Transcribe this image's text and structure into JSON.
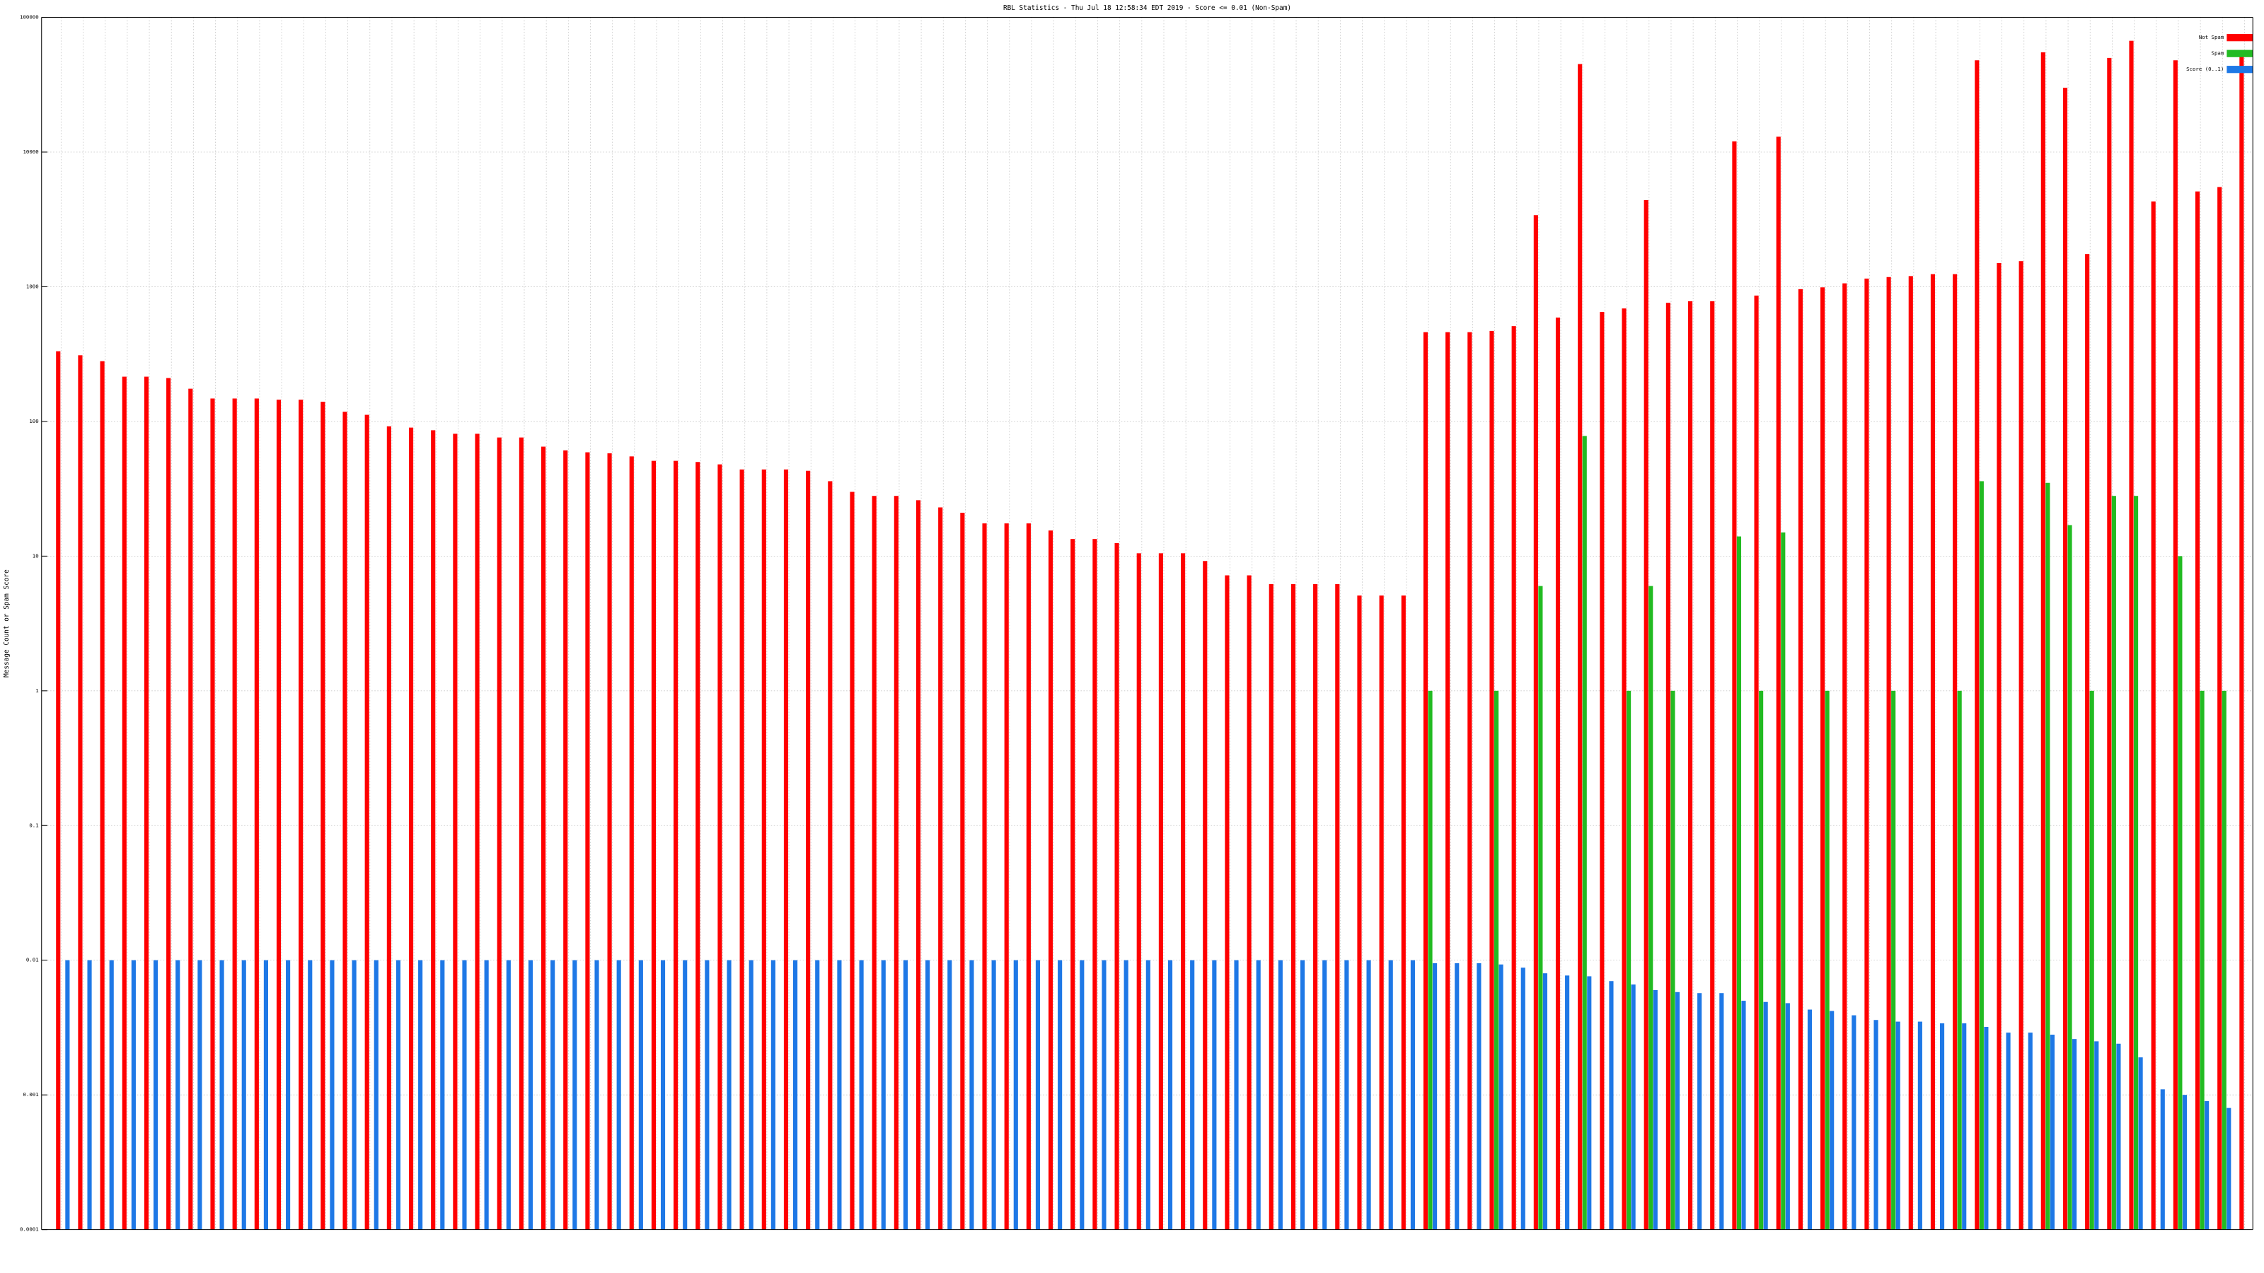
{
  "chart_data": {
    "type": "bar",
    "log_y": true,
    "grid": true,
    "legend": "upper right",
    "title": "RBL Statistics - Thu Jul 18 12:58:34 EDT 2019 - Score <= 0.01 (Non-Spam)",
    "ylabel": "Message Count or Spam Score",
    "ylim": [
      0.0001,
      100000
    ],
    "yticks": [
      0.0001,
      0.001,
      0.01,
      0.1,
      1,
      10,
      100,
      1000,
      10000,
      100000
    ],
    "categories": [
      null,
      null,
      null,
      null,
      null,
      null,
      null,
      null,
      null,
      null,
      null,
      null,
      null,
      null,
      null,
      null,
      null,
      null,
      null,
      null,
      null,
      null,
      null,
      null,
      null,
      null,
      null,
      null,
      null,
      null,
      null,
      null,
      null,
      null,
      null,
      null,
      null,
      null,
      null,
      null,
      null,
      null,
      null,
      null,
      null,
      null,
      null,
      null,
      null,
      null,
      null,
      null,
      null,
      null,
      null,
      null,
      null,
      null,
      null,
      null,
      null,
      null,
      null,
      null,
      null,
      null,
      null,
      null,
      null,
      null,
      null,
      null,
      null,
      null,
      null,
      null,
      null,
      null,
      null,
      null,
      null,
      null,
      null,
      null,
      null,
      null,
      null,
      null,
      null,
      null,
      null,
      null,
      null,
      null,
      null,
      null,
      null,
      null,
      null,
      null
    ],
    "series": [
      {
        "name": "Not Spam",
        "color": "#ff0000",
        "values": [
          332,
          310,
          280,
          215,
          215,
          210,
          175,
          148,
          148,
          148,
          145,
          145,
          140,
          118,
          112,
          92,
          90,
          86,
          81,
          81,
          76,
          76,
          65,
          61,
          59,
          58,
          55,
          51,
          51,
          50,
          48,
          44,
          44,
          44,
          43,
          36,
          30,
          28,
          28,
          26,
          23,
          21,
          17.5,
          17.5,
          17.5,
          15.5,
          13.4,
          13.4,
          12.5,
          10.5,
          10.5,
          10.5,
          9.2,
          7.2,
          7.2,
          6.2,
          6.2,
          6.2,
          6.2,
          5.1,
          5.1,
          5.1,
          460,
          460,
          460,
          470,
          510,
          3400,
          590,
          45000,
          650,
          690,
          4400,
          760,
          780,
          780,
          12000,
          860,
          13000,
          960,
          990,
          1060,
          1150,
          1180,
          1200,
          1240,
          1240,
          48000,
          1500,
          1550,
          55000,
          30000,
          1750,
          50000,
          67000,
          4300,
          48000,
          5100,
          5500,
          55000
        ]
      },
      {
        "name": "Spam",
        "color": "#22bb22",
        "values": [
          null,
          null,
          null,
          null,
          null,
          null,
          null,
          null,
          null,
          null,
          null,
          null,
          null,
          null,
          null,
          null,
          null,
          null,
          null,
          null,
          null,
          null,
          null,
          null,
          null,
          null,
          null,
          null,
          null,
          null,
          null,
          null,
          null,
          null,
          null,
          null,
          null,
          null,
          null,
          null,
          null,
          null,
          null,
          null,
          null,
          null,
          null,
          null,
          null,
          null,
          null,
          null,
          null,
          null,
          null,
          null,
          null,
          null,
          null,
          null,
          null,
          null,
          1,
          null,
          null,
          1,
          null,
          6,
          null,
          78,
          null,
          1,
          6,
          1,
          null,
          null,
          14,
          1,
          15,
          null,
          1,
          null,
          null,
          1,
          null,
          null,
          1,
          36,
          null,
          null,
          35,
          17,
          1,
          28,
          28,
          null,
          10,
          1,
          1,
          null
        ]
      },
      {
        "name": "Score (0..1)",
        "color": "#1e78e6",
        "values": [
          0.01,
          0.01,
          0.01,
          0.01,
          0.01,
          0.01,
          0.01,
          0.01,
          0.01,
          0.01,
          0.01,
          0.01,
          0.01,
          0.01,
          0.01,
          0.01,
          0.01,
          0.01,
          0.01,
          0.01,
          0.01,
          0.01,
          0.01,
          0.01,
          0.01,
          0.01,
          0.01,
          0.01,
          0.01,
          0.01,
          0.01,
          0.01,
          0.01,
          0.01,
          0.01,
          0.01,
          0.01,
          0.01,
          0.01,
          0.01,
          0.01,
          0.01,
          0.01,
          0.01,
          0.01,
          0.01,
          0.01,
          0.01,
          0.01,
          0.01,
          0.01,
          0.01,
          0.01,
          0.01,
          0.01,
          0.01,
          0.01,
          0.01,
          0.01,
          0.01,
          0.01,
          0.01,
          0.0095,
          0.0095,
          0.0095,
          0.0093,
          0.0088,
          0.008,
          0.0077,
          0.0076,
          0.007,
          0.0066,
          0.006,
          0.0058,
          0.0057,
          0.0057,
          0.005,
          0.0049,
          0.0048,
          0.0043,
          0.0042,
          0.0039,
          0.0036,
          0.0035,
          0.0035,
          0.0034,
          0.0034,
          0.0032,
          0.0029,
          0.0029,
          0.0028,
          0.0026,
          0.0025,
          0.0024,
          0.0019,
          0.0011,
          0.001,
          0.0009,
          0.0008,
          null
        ]
      }
    ]
  }
}
